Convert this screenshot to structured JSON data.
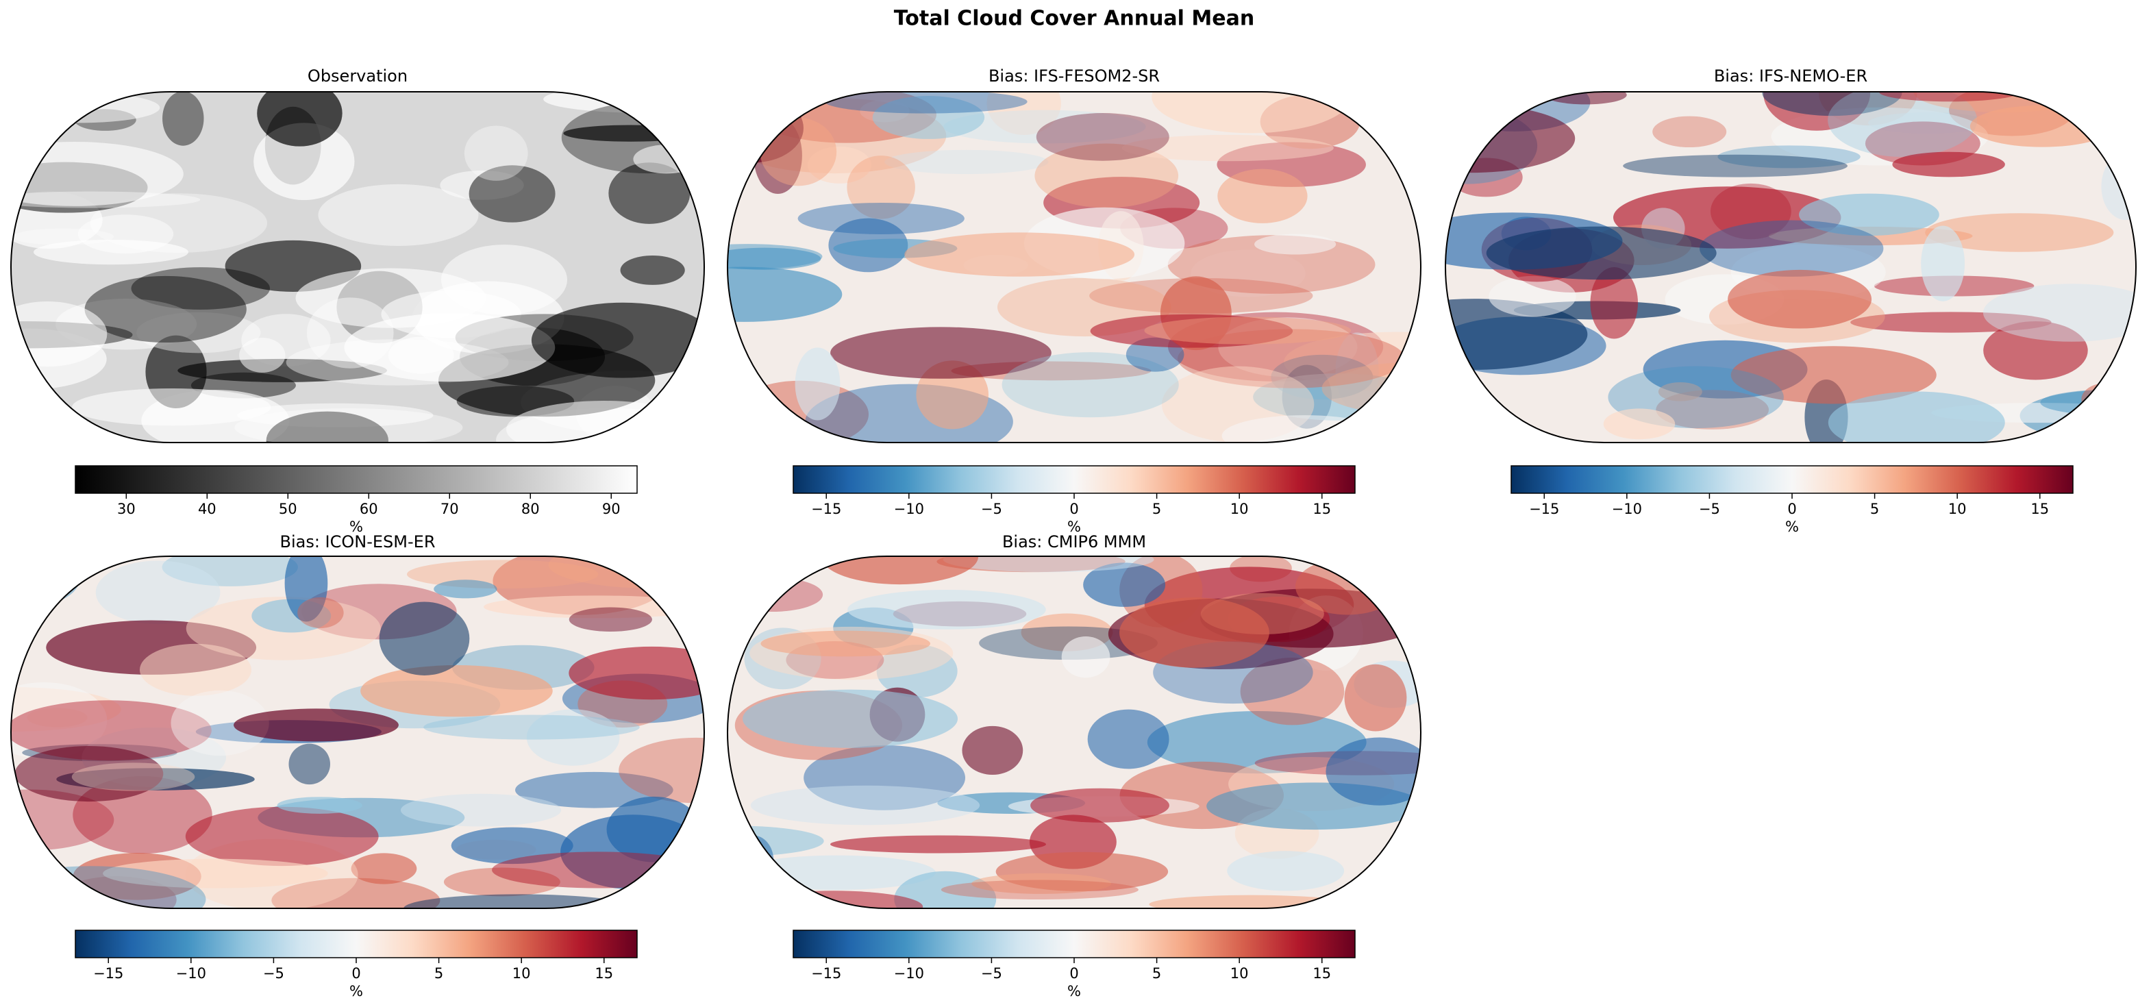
{
  "title": "Total Cloud Cover Annual Mean",
  "panels": [
    {
      "title": "Observation",
      "colormap": "gray",
      "colorbar": {
        "lim": [
          23.7,
          93.2
        ],
        "ticks": [
          30,
          40,
          50,
          60,
          70,
          80,
          90
        ],
        "label": "%"
      }
    },
    {
      "title": "Bias: IFS-FESOM2-SR",
      "colormap": "RdBu_r",
      "colorbar": {
        "lim": [
          -17,
          17
        ],
        "ticks": [
          {
            "value": -15,
            "label": "−15"
          },
          {
            "value": -10,
            "label": "−10"
          },
          {
            "value": -5,
            "label": "−5"
          },
          0,
          5,
          10,
          15
        ],
        "label": "%"
      }
    },
    {
      "title": "Bias: IFS-NEMO-ER",
      "colormap": "RdBu_r",
      "colorbar": {
        "lim": [
          -17,
          17
        ],
        "ticks": [
          {
            "value": -15,
            "label": "−15"
          },
          {
            "value": -10,
            "label": "−10"
          },
          {
            "value": -5,
            "label": "−5"
          },
          0,
          5,
          10,
          15
        ],
        "label": "%"
      }
    },
    {
      "title": "Bias: ICON-ESM-ER",
      "colormap": "RdBu_r",
      "colorbar": {
        "lim": [
          -17,
          17
        ],
        "ticks": [
          {
            "value": -15,
            "label": "−15"
          },
          {
            "value": -10,
            "label": "−10"
          },
          {
            "value": -5,
            "label": "−5"
          },
          0,
          5,
          10,
          15
        ],
        "label": "%"
      }
    },
    {
      "title": "Bias: CMIP6 MMM",
      "colormap": "RdBu_r",
      "colorbar": {
        "lim": [
          -17,
          17
        ],
        "ticks": [
          {
            "value": -15,
            "label": "−15"
          },
          {
            "value": -10,
            "label": "−10"
          },
          {
            "value": -5,
            "label": "−5"
          },
          0,
          5,
          10,
          15
        ],
        "label": "%"
      }
    }
  ]
}
